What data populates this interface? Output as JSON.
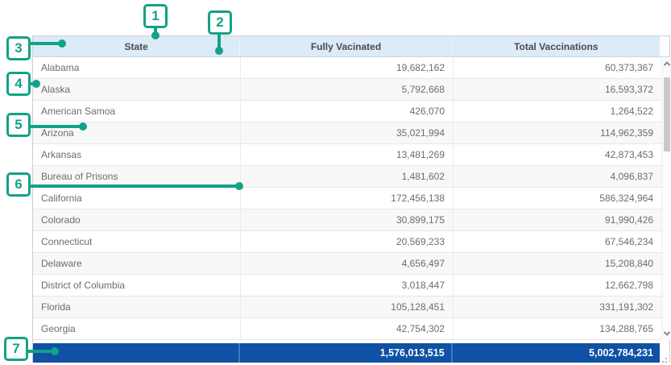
{
  "table": {
    "columns": [
      "State",
      "Fully Vacinated",
      "Total Vaccinations"
    ],
    "rows": [
      {
        "state": "Alabama",
        "fully_vaccinated": "19,682,162",
        "total_vaccinations": "60,373,367"
      },
      {
        "state": "Alaska",
        "fully_vaccinated": "5,792,668",
        "total_vaccinations": "16,593,372"
      },
      {
        "state": "American Samoa",
        "fully_vaccinated": "426,070",
        "total_vaccinations": "1,264,522"
      },
      {
        "state": "Arizona",
        "fully_vaccinated": "35,021,994",
        "total_vaccinations": "114,962,359"
      },
      {
        "state": "Arkansas",
        "fully_vaccinated": "13,481,269",
        "total_vaccinations": "42,873,453"
      },
      {
        "state": "Bureau of Prisons",
        "fully_vaccinated": "1,481,602",
        "total_vaccinations": "4,096,837"
      },
      {
        "state": "California",
        "fully_vaccinated": "172,456,138",
        "total_vaccinations": "586,324,964"
      },
      {
        "state": "Colorado",
        "fully_vaccinated": "30,899,175",
        "total_vaccinations": "91,990,426"
      },
      {
        "state": "Connecticut",
        "fully_vaccinated": "20,569,233",
        "total_vaccinations": "67,546,234"
      },
      {
        "state": "Delaware",
        "fully_vaccinated": "4,656,497",
        "total_vaccinations": "15,208,840"
      },
      {
        "state": "District of Columbia",
        "fully_vaccinated": "3,018,447",
        "total_vaccinations": "12,662,798"
      },
      {
        "state": "Florida",
        "fully_vaccinated": "105,128,451",
        "total_vaccinations": "331,191,302"
      },
      {
        "state": "Georgia",
        "fully_vaccinated": "42,754,302",
        "total_vaccinations": "134,288,765"
      }
    ],
    "footer": {
      "fully_vaccinated_total": "1,576,013,515",
      "total_vaccinations_total": "5,002,784,231"
    }
  },
  "annotations": [
    {
      "label": "1"
    },
    {
      "label": "2"
    },
    {
      "label": "3"
    },
    {
      "label": "4"
    },
    {
      "label": "5"
    },
    {
      "label": "6"
    },
    {
      "label": "7"
    }
  ],
  "colors": {
    "accent_teal": "#12a287",
    "header_bg": "#dcebf8",
    "footer_bg": "#0f51a4",
    "row_alt_bg": "#f8f8f8"
  }
}
